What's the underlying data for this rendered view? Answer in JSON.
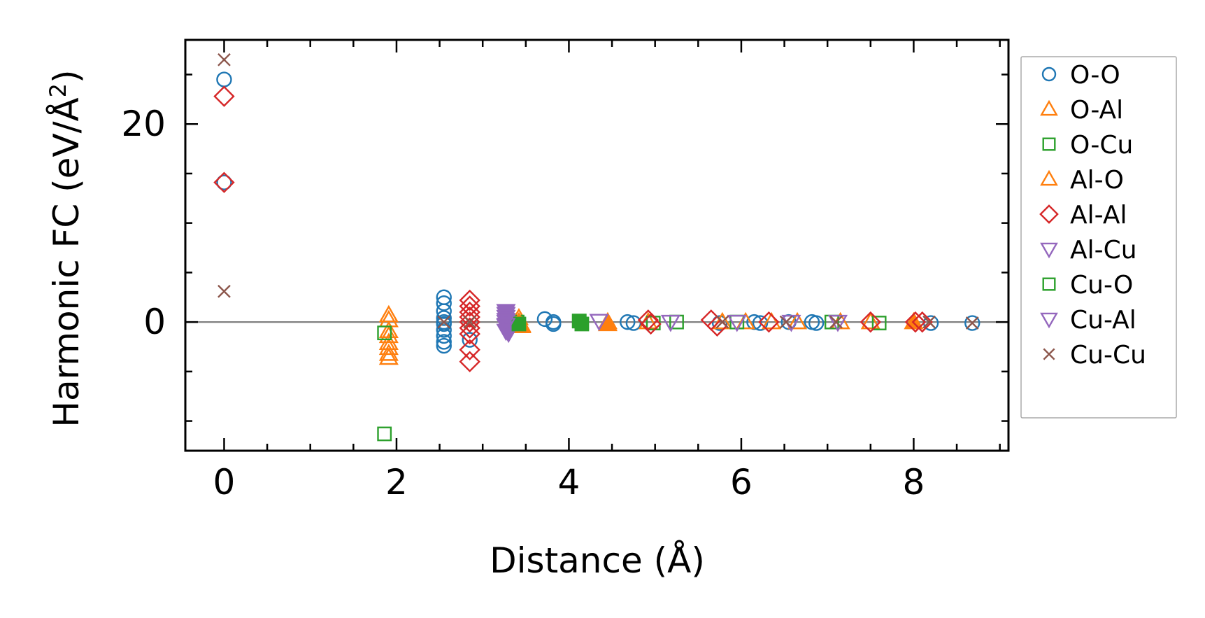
{
  "chart_data": {
    "type": "scatter",
    "title": "",
    "xlabel": "Distance (Å)",
    "ylabel_main": "Harmonic FC (eV/Å",
    "ylabel_sup": "2",
    "ylabel_close": ")",
    "xlim": [
      -0.45,
      9.1
    ],
    "ylim": [
      -13,
      28.5
    ],
    "xticks": [
      0,
      2,
      4,
      6,
      8
    ],
    "xtick_labels": [
      "0",
      "2",
      "4",
      "6",
      "8"
    ],
    "yticks": [
      0,
      20
    ],
    "ytick_labels": [
      "0",
      "20"
    ],
    "x_minor_step": 0.5,
    "y_minor_step": 5,
    "grid": false,
    "zero_line": true,
    "legend_position": "outside-right",
    "series": [
      {
        "name": "O-O",
        "marker": "circle",
        "filled": false,
        "color": "#1f77b4",
        "x": [
          0,
          0,
          2.55,
          2.55,
          2.55,
          2.55,
          2.55,
          2.55,
          2.55,
          2.55,
          2.55,
          2.55,
          2.85,
          3.72,
          3.82,
          3.82,
          4.68,
          4.75,
          5.75,
          6.15,
          6.22,
          6.55,
          6.82,
          6.87,
          8.2,
          8.68
        ],
        "y": [
          24.5,
          14.1,
          2.5,
          1.9,
          1.1,
          0.4,
          -0.2,
          -0.8,
          -1.4,
          -2.0,
          -2.4,
          0.0,
          -1.8,
          0.3,
          0.0,
          -0.2,
          0.0,
          -0.1,
          -0.1,
          0.0,
          -0.1,
          0.0,
          0.0,
          -0.1,
          -0.1,
          -0.1
        ]
      },
      {
        "name": "O-Al",
        "marker": "triangle-up",
        "filled": false,
        "color": "#ff7f0e",
        "x": [
          1.91,
          1.91,
          1.91,
          1.91,
          1.91,
          1.91,
          1.91,
          1.91,
          3.42,
          3.45,
          4.45,
          4.92,
          5.78,
          6.05,
          6.35,
          6.65,
          7.15,
          7.5
        ],
        "y": [
          0.7,
          0.2,
          -0.9,
          -1.4,
          -2.1,
          -2.6,
          -3.2,
          -3.6,
          0.4,
          -0.3,
          0.0,
          0.0,
          0.0,
          0.0,
          0.0,
          0.0,
          0.0,
          0.0
        ]
      },
      {
        "name": "O-Cu",
        "marker": "square",
        "filled": false,
        "color": "#2ca02c",
        "x": [
          1.86,
          1.86,
          3.4,
          4.12,
          4.98,
          5.25,
          5.95,
          7.05,
          7.6
        ],
        "y": [
          -1.1,
          -11.3,
          0.0,
          0.1,
          -0.1,
          0.0,
          0.0,
          0.0,
          -0.1
        ]
      },
      {
        "name": "Al-O",
        "marker": "triangle-up",
        "filled": true,
        "color": "#ff7f0e",
        "x": [
          3.42,
          3.45,
          4.45,
          8.0
        ],
        "y": [
          0.0,
          -0.4,
          -0.2,
          0.0
        ]
      },
      {
        "name": "Al-Al",
        "marker": "diamond",
        "filled": false,
        "color": "#d62728",
        "x": [
          0,
          0,
          2.85,
          2.85,
          2.85,
          2.85,
          2.85,
          2.85,
          2.85,
          2.85,
          2.85,
          4.92,
          4.95,
          5.65,
          5.72,
          6.32,
          7.5,
          8.02,
          8.1
        ],
        "y": [
          22.8,
          14.1,
          2.2,
          1.6,
          1.0,
          0.5,
          0.0,
          -0.6,
          -1.2,
          -2.8,
          -4.0,
          0.2,
          -0.2,
          0.2,
          -0.4,
          0.0,
          0.0,
          0.0,
          0.0
        ]
      },
      {
        "name": "Al-Cu",
        "marker": "triangle-down",
        "filled": true,
        "color": "#9467bd",
        "x": [
          3.27,
          3.27,
          3.27,
          3.27,
          3.27,
          3.3
        ],
        "y": [
          1.1,
          0.5,
          0.0,
          -0.4,
          -0.9,
          -1.1
        ]
      },
      {
        "name": "Cu-O",
        "marker": "square",
        "filled": true,
        "color": "#2ca02c",
        "x": [
          3.42,
          4.12,
          4.15
        ],
        "y": [
          -0.2,
          0.1,
          -0.2
        ]
      },
      {
        "name": "Cu-Al",
        "marker": "triangle-down",
        "filled": false,
        "color": "#9467bd",
        "x": [
          3.27,
          3.27,
          3.27,
          4.35,
          5.18,
          5.95,
          6.58,
          7.12
        ],
        "y": [
          0.8,
          0.2,
          -0.3,
          0.1,
          0.0,
          0.0,
          0.0,
          0.0
        ]
      },
      {
        "name": "Cu-Cu",
        "marker": "x",
        "filled": false,
        "color": "#8c564b",
        "x": [
          0,
          0,
          2.55,
          2.85,
          5.78,
          6.52,
          7.1,
          8.18,
          8.68
        ],
        "y": [
          26.5,
          3.1,
          0.0,
          0.0,
          0.0,
          0.0,
          0.0,
          0.0,
          -0.1
        ]
      }
    ],
    "legend": [
      {
        "label": "O-O",
        "marker": "circle",
        "color": "#1f77b4"
      },
      {
        "label": "O-Al",
        "marker": "triangle-up",
        "color": "#ff7f0e"
      },
      {
        "label": "O-Cu",
        "marker": "square",
        "color": "#2ca02c"
      },
      {
        "label": "Al-O",
        "marker": "triangle-up",
        "color": "#ff7f0e"
      },
      {
        "label": "Al-Al",
        "marker": "diamond",
        "color": "#d62728"
      },
      {
        "label": "Al-Cu",
        "marker": "triangle-down",
        "color": "#9467bd"
      },
      {
        "label": "Cu-O",
        "marker": "square",
        "color": "#2ca02c"
      },
      {
        "label": "Cu-Al",
        "marker": "triangle-down",
        "color": "#9467bd"
      },
      {
        "label": "Cu-Cu",
        "marker": "x",
        "color": "#8c564b"
      }
    ]
  }
}
